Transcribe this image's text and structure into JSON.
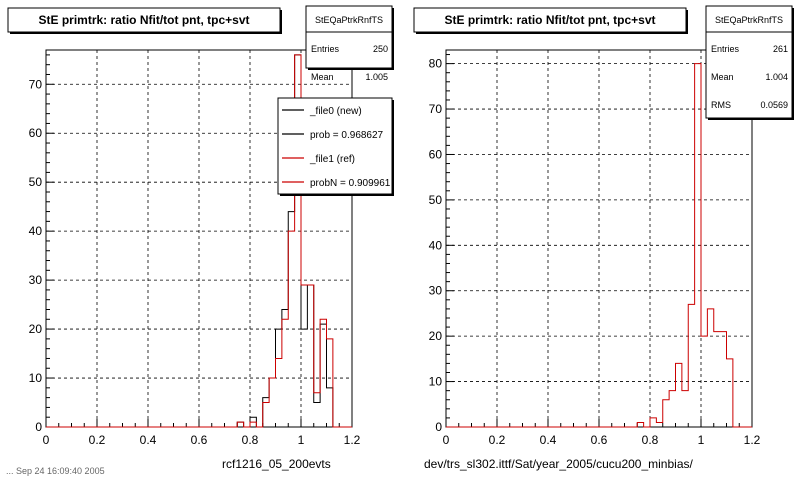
{
  "chart_data": [
    {
      "type": "histogram",
      "title": "StE primtrk: ratio Nfit/tot pnt, tpc+svt",
      "xlabel": "rcf1216_05_200evts",
      "xlim": [
        0,
        1.2
      ],
      "ylim": [
        0,
        77
      ],
      "xticks": [
        0,
        0.2,
        0.4,
        0.6,
        0.8,
        1,
        1.2
      ],
      "yticks": [
        0,
        10,
        20,
        30,
        40,
        50,
        60,
        70
      ],
      "grid": true,
      "bin_width": 0.025,
      "stats": {
        "name": "StEQaPtrkRnfTS",
        "entries_label": "Entries",
        "entries": "250",
        "mean_label": "Mean",
        "mean": "1.005"
      },
      "legend": {
        "position": "top-right",
        "entries": [
          {
            "label": "_file0 (new)",
            "color": "#000000"
          },
          {
            "label": "prob = 0.968627",
            "color": "#000000"
          },
          {
            "label": "_file1 (ref)",
            "color": "#cc0000"
          },
          {
            "label": "probN = 0.909961",
            "color": "#cc0000"
          }
        ]
      },
      "series": [
        {
          "color": "#000000",
          "x_start": [
            0.725,
            0.75,
            0.775,
            0.8,
            0.825,
            0.85,
            0.875,
            0.9,
            0.925,
            0.95,
            0.975,
            1.0,
            1.025,
            1.05,
            1.075,
            1.1,
            1.125
          ],
          "values": [
            0,
            1,
            0,
            2,
            0,
            6,
            10,
            20,
            24,
            44,
            76,
            20,
            29,
            5,
            21,
            8,
            0
          ]
        },
        {
          "color": "#cc0000",
          "x_start": [
            0.725,
            0.75,
            0.775,
            0.8,
            0.825,
            0.85,
            0.875,
            0.9,
            0.925,
            0.95,
            0.975,
            1.0,
            1.025,
            1.05,
            1.075,
            1.1,
            1.125
          ],
          "values": [
            0,
            1,
            0,
            1,
            0,
            5,
            10,
            14,
            22,
            40,
            76,
            29,
            29,
            7,
            22,
            18,
            0
          ]
        }
      ]
    },
    {
      "type": "histogram",
      "title": "StE primtrk: ratio Nfit/tot pnt, tpc+svt",
      "xlabel": "dev/trs_sl302.ittf/Sat/year_2005/cucu200_minbias/",
      "xlim": [
        0,
        1.2
      ],
      "ylim": [
        0,
        83
      ],
      "xticks": [
        0,
        0.2,
        0.4,
        0.6,
        0.8,
        1,
        1.2
      ],
      "yticks": [
        0,
        10,
        20,
        30,
        40,
        50,
        60,
        70,
        80
      ],
      "grid": true,
      "bin_width": 0.025,
      "stats": {
        "name": "StEQaPtrkRnfTS",
        "entries_label": "Entries",
        "entries": "261",
        "mean_label": "Mean",
        "mean": "1.004",
        "rms_label": "RMS",
        "rms": "0.0569"
      },
      "series": [
        {
          "color": "#cc0000",
          "x_start": [
            0.725,
            0.75,
            0.775,
            0.8,
            0.825,
            0.85,
            0.875,
            0.9,
            0.925,
            0.95,
            0.975,
            1.0,
            1.025,
            1.05,
            1.075,
            1.1,
            1.125
          ],
          "values": [
            0,
            1,
            0,
            2,
            1,
            6,
            8,
            14,
            8,
            27,
            80,
            20,
            26,
            21,
            21,
            15,
            0
          ]
        }
      ]
    }
  ],
  "footer": "... Sep 24 16:09:40 2005"
}
